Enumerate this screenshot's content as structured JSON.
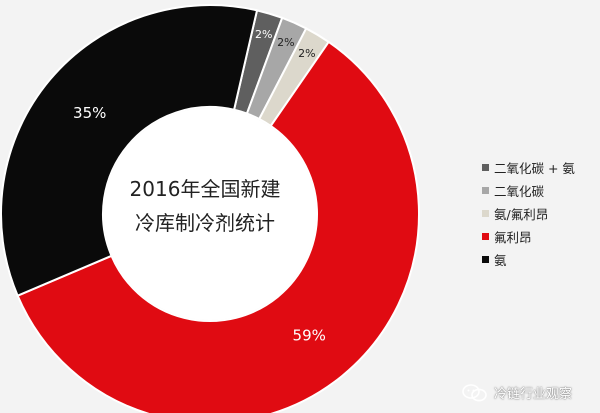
{
  "chart_data": {
    "type": "pie",
    "title_lines": [
      "2016年全国新建",
      "冷库制冷剂统计"
    ],
    "slices": [
      {
        "label": "二氧化碳 + 氨",
        "value": 2,
        "display": "2%",
        "color": "#5f5f5f"
      },
      {
        "label": "二氧化碳",
        "value": 2,
        "display": "2%",
        "color": "#a7a7a7"
      },
      {
        "label": "氨/氟利昂",
        "value": 2,
        "display": "2%",
        "color": "#dcd8cc"
      },
      {
        "label": "氟利昂",
        "value": 59,
        "display": "59%",
        "color": "#e00b12"
      },
      {
        "label": "氨",
        "value": 35,
        "display": "35%",
        "color": "#0a0a0a"
      }
    ],
    "legend_position": "right"
  },
  "watermark": {
    "text": "冷链行业观察",
    "icon": "wechat-icon"
  }
}
